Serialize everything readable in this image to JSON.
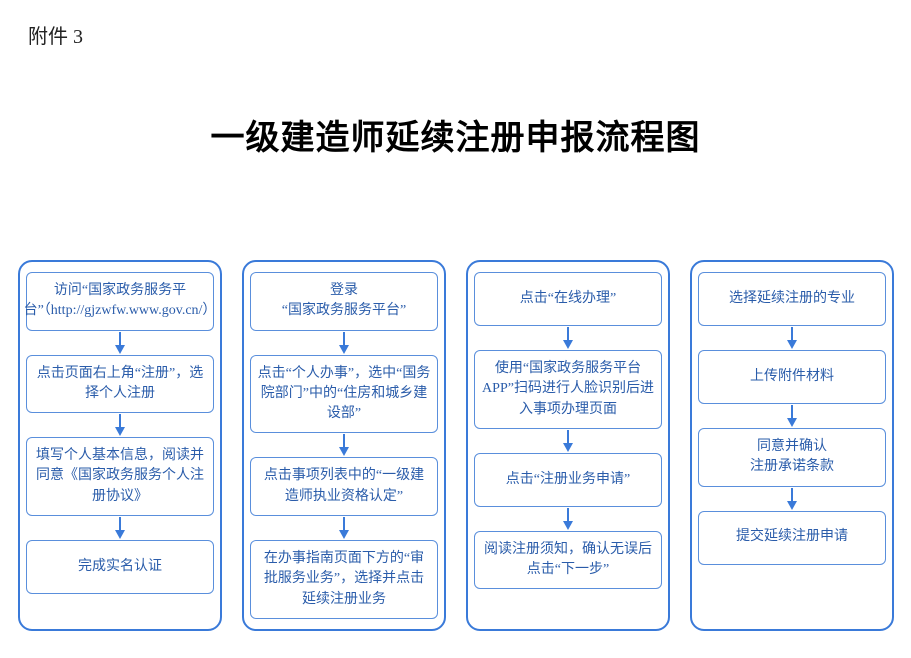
{
  "attachment_label": "附件 3",
  "title": "一级建造师延续注册申报流程图",
  "style": {
    "border_color": "#3a7ad9",
    "node_border_color": "#5a8fdc",
    "text_color": "#2a5caa",
    "arrow_color": "#3a7ad9",
    "background": "#ffffff",
    "title_fontsize": 34,
    "title_fontweight": 700,
    "node_fontsize": 14,
    "column_count": 4,
    "column_border_radius": 14,
    "node_border_radius": 6
  },
  "columns": [
    {
      "id": "col-1",
      "nodes": [
        "访问“国家政务服务平台”（http://gjzwfw.www.gov.cn/）",
        "点击页面右上角“注册”，选择个人注册",
        "填写个人基本信息，阅读并同意《国家政务服务个人注册协议》",
        "完成实名认证"
      ]
    },
    {
      "id": "col-2",
      "nodes": [
        "登录\n“国家政务服务平台”",
        "点击“个人办事”，选中“国务院部门”中的“住房和城乡建设部”",
        "点击事项列表中的“一级建造师执业资格认定”",
        "在办事指南页面下方的“审批服务业务”，选择并点击延续注册业务"
      ]
    },
    {
      "id": "col-3",
      "nodes": [
        "点击“在线办理”",
        "使用“国家政务服务平台APP”扫码进行人脸识别后进入事项办理页面",
        "点击“注册业务申请”",
        "阅读注册须知，确认无误后点击“下一步”"
      ]
    },
    {
      "id": "col-4",
      "nodes": [
        "选择延续注册的专业",
        "上传附件材料",
        "同意并确认\n注册承诺条款",
        "提交延续注册申请"
      ]
    }
  ]
}
